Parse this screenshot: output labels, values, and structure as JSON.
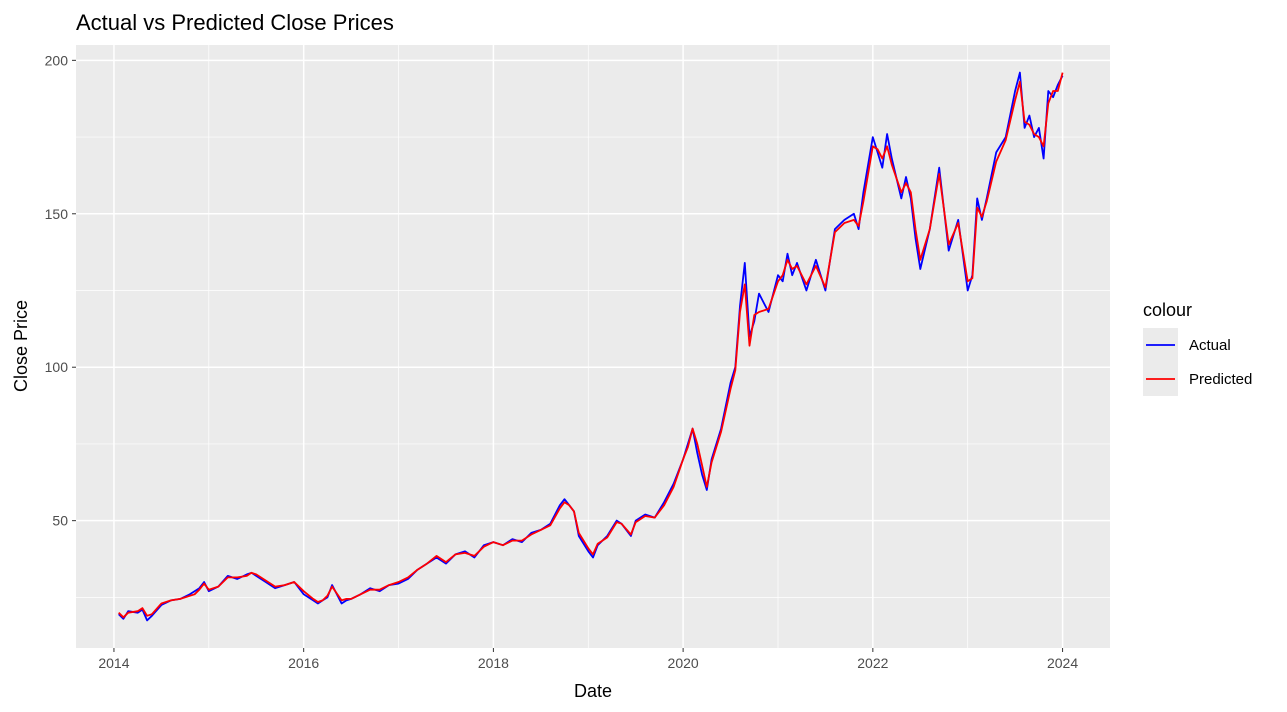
{
  "chart_data": {
    "type": "line",
    "title": "Actual vs Predicted Close Prices",
    "xlabel": "Date",
    "ylabel": "Close Price",
    "xlim": [
      2013.6,
      2024.5
    ],
    "ylim": [
      8.5,
      205
    ],
    "x_ticks": [
      2014,
      2016,
      2018,
      2020,
      2022,
      2024
    ],
    "x_tick_labels": [
      "2014",
      "2016",
      "2018",
      "2020",
      "2022",
      "2024"
    ],
    "y_ticks": [
      50,
      100,
      150,
      200
    ],
    "y_tick_labels": [
      "50",
      "100",
      "150",
      "200"
    ],
    "grid": true,
    "legend": {
      "title": "colour",
      "position": "right"
    },
    "series": [
      {
        "name": "Actual",
        "color": "#0000FF",
        "x": [
          2014.05,
          2014.1,
          2014.15,
          2014.25,
          2014.3,
          2014.35,
          2014.4,
          2014.5,
          2014.6,
          2014.7,
          2014.8,
          2014.85,
          2014.9,
          2014.95,
          2015.0,
          2015.1,
          2015.2,
          2015.3,
          2015.4,
          2015.45,
          2015.5,
          2015.6,
          2015.7,
          2015.8,
          2015.9,
          2016.0,
          2016.1,
          2016.15,
          2016.2,
          2016.25,
          2016.3,
          2016.4,
          2016.45,
          2016.5,
          2016.6,
          2016.7,
          2016.8,
          2016.9,
          2017.0,
          2017.1,
          2017.2,
          2017.3,
          2017.4,
          2017.5,
          2017.6,
          2017.7,
          2017.8,
          2017.9,
          2018.0,
          2018.1,
          2018.2,
          2018.3,
          2018.4,
          2018.5,
          2018.6,
          2018.7,
          2018.75,
          2018.8,
          2018.85,
          2018.9,
          2019.0,
          2019.05,
          2019.1,
          2019.2,
          2019.3,
          2019.35,
          2019.45,
          2019.5,
          2019.6,
          2019.7,
          2019.8,
          2019.9,
          2020.0,
          2020.05,
          2020.1,
          2020.15,
          2020.2,
          2020.25,
          2020.3,
          2020.4,
          2020.5,
          2020.55,
          2020.6,
          2020.65,
          2020.7,
          2020.75,
          2020.8,
          2020.9,
          2021.0,
          2021.05,
          2021.1,
          2021.15,
          2021.2,
          2021.3,
          2021.4,
          2021.5,
          2021.6,
          2021.7,
          2021.8,
          2021.85,
          2021.9,
          2022.0,
          2022.05,
          2022.1,
          2022.15,
          2022.2,
          2022.3,
          2022.35,
          2022.4,
          2022.45,
          2022.5,
          2022.6,
          2022.7,
          2022.8,
          2022.9,
          2023.0,
          2023.05,
          2023.1,
          2023.15,
          2023.2,
          2023.3,
          2023.4,
          2023.5,
          2023.55,
          2023.6,
          2023.65,
          2023.7,
          2023.75,
          2023.8,
          2023.85,
          2023.9,
          2023.95,
          2024.0
        ],
        "values": [
          19.5,
          18,
          20.5,
          20,
          21,
          17.5,
          19,
          22.5,
          24,
          24.5,
          26,
          27,
          28,
          30,
          27,
          28.5,
          32,
          31,
          32.5,
          33,
          32,
          30,
          28,
          29,
          30,
          26,
          24,
          23,
          24,
          25,
          29,
          23,
          24,
          24.5,
          26,
          28,
          27,
          29,
          29.5,
          31,
          34,
          36,
          38,
          36,
          39,
          40,
          38,
          42,
          43,
          42,
          44,
          43,
          46,
          47,
          49,
          55,
          57,
          55,
          53,
          45,
          40,
          38,
          42,
          45,
          50,
          49,
          45,
          50,
          52,
          51,
          56,
          62,
          70,
          75,
          80,
          72,
          65,
          60,
          70,
          80,
          95,
          100,
          120,
          134,
          110,
          115,
          124,
          118,
          130,
          128,
          137,
          130,
          134,
          125,
          135,
          125,
          145,
          148,
          150,
          145,
          157,
          175,
          170,
          165,
          176,
          168,
          155,
          162,
          155,
          142,
          132,
          145,
          165,
          138,
          148,
          125,
          130,
          155,
          148,
          155,
          170,
          175,
          190,
          196,
          178,
          182,
          175,
          178,
          168,
          190,
          188,
          192,
          195
        ]
      },
      {
        "name": "Predicted",
        "color": "#FF0000",
        "x": [
          2014.05,
          2014.1,
          2014.15,
          2014.25,
          2014.3,
          2014.35,
          2014.4,
          2014.5,
          2014.6,
          2014.7,
          2014.8,
          2014.85,
          2014.9,
          2014.95,
          2015.0,
          2015.1,
          2015.2,
          2015.3,
          2015.4,
          2015.45,
          2015.5,
          2015.6,
          2015.7,
          2015.8,
          2015.9,
          2016.0,
          2016.1,
          2016.15,
          2016.2,
          2016.25,
          2016.3,
          2016.4,
          2016.45,
          2016.5,
          2016.6,
          2016.7,
          2016.8,
          2016.9,
          2017.0,
          2017.1,
          2017.2,
          2017.3,
          2017.4,
          2017.5,
          2017.6,
          2017.7,
          2017.8,
          2017.9,
          2018.0,
          2018.1,
          2018.2,
          2018.3,
          2018.4,
          2018.5,
          2018.6,
          2018.7,
          2018.75,
          2018.8,
          2018.85,
          2018.9,
          2019.0,
          2019.05,
          2019.1,
          2019.2,
          2019.3,
          2019.35,
          2019.45,
          2019.5,
          2019.6,
          2019.7,
          2019.8,
          2019.9,
          2020.0,
          2020.05,
          2020.1,
          2020.15,
          2020.2,
          2020.25,
          2020.3,
          2020.4,
          2020.5,
          2020.55,
          2020.6,
          2020.65,
          2020.7,
          2020.75,
          2020.8,
          2020.9,
          2021.0,
          2021.05,
          2021.1,
          2021.15,
          2021.2,
          2021.3,
          2021.4,
          2021.5,
          2021.6,
          2021.7,
          2021.8,
          2021.85,
          2021.9,
          2022.0,
          2022.05,
          2022.1,
          2022.15,
          2022.2,
          2022.3,
          2022.35,
          2022.4,
          2022.45,
          2022.5,
          2022.6,
          2022.7,
          2022.8,
          2022.9,
          2023.0,
          2023.05,
          2023.1,
          2023.15,
          2023.2,
          2023.3,
          2023.4,
          2023.5,
          2023.55,
          2023.6,
          2023.65,
          2023.7,
          2023.75,
          2023.8,
          2023.85,
          2023.9,
          2023.95,
          2024.0
        ],
        "values": [
          20,
          18.5,
          20,
          20.5,
          21.5,
          19,
          19.5,
          23,
          24,
          24.5,
          25.5,
          26,
          27.5,
          29.5,
          27.5,
          28.5,
          31.5,
          31.5,
          32,
          33,
          32.5,
          30.5,
          28.5,
          29,
          30,
          27,
          24.5,
          23.5,
          24,
          25.5,
          28.5,
          24,
          24.5,
          24.5,
          26,
          27.5,
          27.5,
          29,
          30,
          31.5,
          34,
          36,
          38.5,
          36.5,
          39,
          39.5,
          38.5,
          41.5,
          43,
          42,
          43.5,
          43.5,
          45.5,
          47,
          48.5,
          54,
          56,
          55,
          53,
          46,
          41,
          39,
          42.5,
          44.5,
          49.5,
          49,
          45.5,
          49.5,
          51.5,
          51,
          55,
          61,
          70,
          74,
          80,
          75,
          68,
          61,
          69,
          79,
          93,
          99,
          118,
          127,
          107,
          117,
          118,
          119,
          128,
          130,
          135,
          132,
          133,
          127,
          133,
          126,
          144,
          147,
          148,
          146,
          154,
          172,
          171,
          168,
          172,
          166,
          157,
          160,
          157,
          145,
          135,
          145,
          163,
          140,
          147,
          128,
          129,
          152,
          149,
          154,
          167,
          174,
          187,
          193,
          180,
          179,
          176,
          175,
          172,
          186,
          190,
          190,
          196
        ]
      }
    ]
  }
}
